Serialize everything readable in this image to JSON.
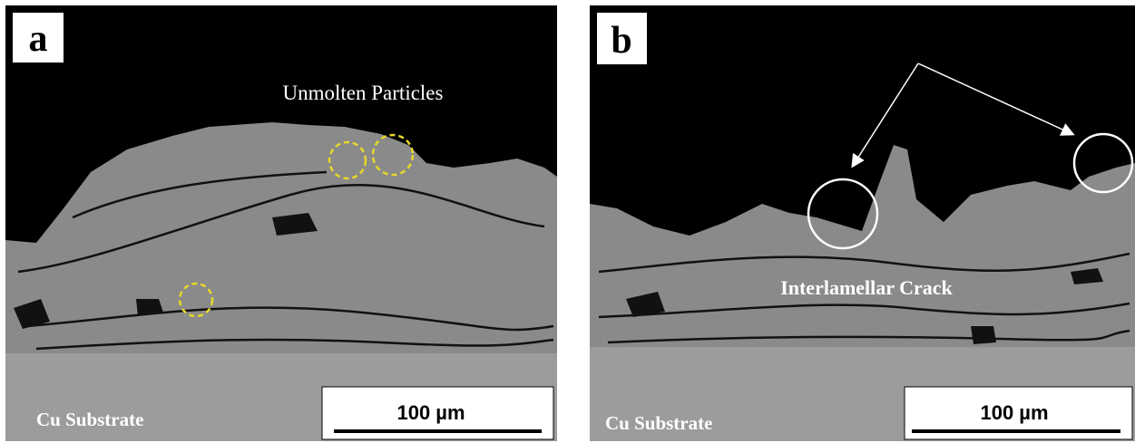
{
  "panels": [
    {
      "label": "a",
      "annotation": "Unmolten Particles",
      "substrate": "Cu Substrate",
      "scale_bar": "100 µm"
    },
    {
      "label": "b",
      "annotation": "Interlamellar Crack",
      "substrate": "Cu Substrate",
      "scale_bar": "100 µm"
    }
  ]
}
